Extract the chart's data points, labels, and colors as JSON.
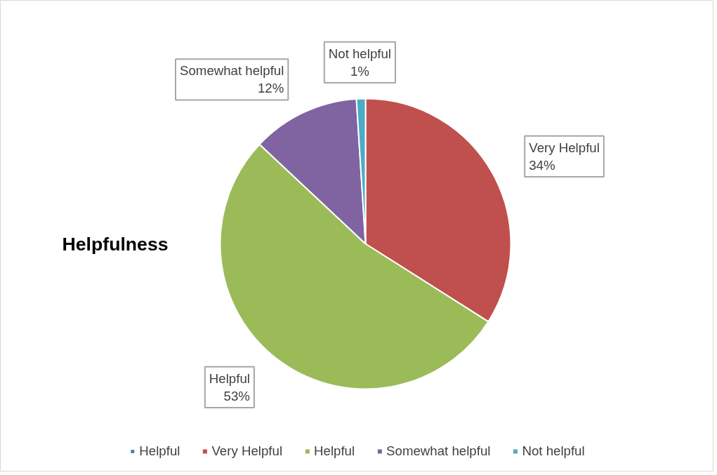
{
  "chart_data": {
    "type": "pie",
    "title": "Helpfulness",
    "categories": [
      "Helpful",
      "Very Helpful",
      "Helpful",
      "Somewhat helpful",
      "Not helpful"
    ],
    "values": [
      0,
      34,
      53,
      12,
      1
    ],
    "value_labels": [
      null,
      "34%",
      "53%",
      "12%",
      "1%"
    ],
    "colors": [
      "#4f81bd",
      "#c0504d",
      "#9bbb59",
      "#8064a2",
      "#4bacc6"
    ],
    "legend": "bottom"
  }
}
